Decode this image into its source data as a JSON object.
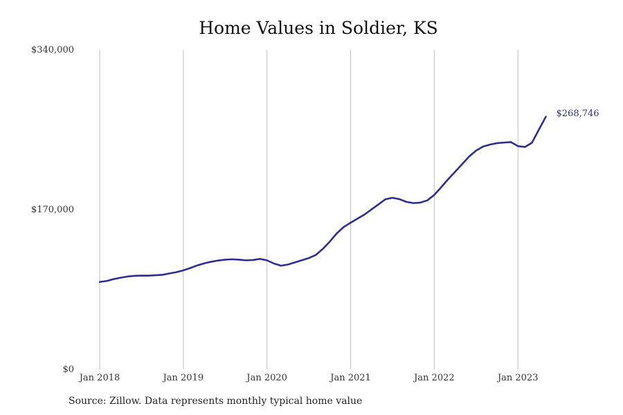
{
  "chart_data": {
    "type": "line",
    "title": "Home Values in Soldier, KS",
    "xlabel": "",
    "ylabel": "",
    "ylim": [
      0,
      340000
    ],
    "xlim": [
      "2018-01",
      "2023-12"
    ],
    "y_ticks": [
      "$0",
      "$170,000",
      "$340,000"
    ],
    "y_tick_values": [
      0,
      170000,
      340000
    ],
    "x_ticks": [
      "Jan 2018",
      "Jan 2019",
      "Jan 2020",
      "Jan 2021",
      "Jan 2022",
      "Jan 2023"
    ],
    "x_tick_values": [
      "2018-01",
      "2019-01",
      "2020-01",
      "2021-01",
      "2022-01",
      "2023-01"
    ],
    "grid": "vertical",
    "line_color": "#2e2e8c",
    "end_label": "$268,746",
    "series": [
      {
        "x": [
          "2018-01",
          "2018-02",
          "2018-03",
          "2018-04",
          "2018-05",
          "2018-06",
          "2018-07",
          "2018-08",
          "2018-09",
          "2018-10",
          "2018-11",
          "2018-12",
          "2019-01",
          "2019-02",
          "2019-03",
          "2019-04",
          "2019-05",
          "2019-06",
          "2019-07",
          "2019-08",
          "2019-09",
          "2019-10",
          "2019-11",
          "2019-12",
          "2020-01",
          "2020-02",
          "2020-03",
          "2020-04",
          "2020-05",
          "2020-06",
          "2020-07",
          "2020-08",
          "2020-09",
          "2020-10",
          "2020-11",
          "2020-12",
          "2021-01",
          "2021-02",
          "2021-03",
          "2021-04",
          "2021-05",
          "2021-06",
          "2021-07",
          "2021-08",
          "2021-09",
          "2021-10",
          "2021-11",
          "2021-12",
          "2022-01",
          "2022-02",
          "2022-03",
          "2022-04",
          "2022-05",
          "2022-06",
          "2022-07",
          "2022-08",
          "2022-09",
          "2022-10",
          "2022-11",
          "2022-12",
          "2023-01",
          "2023-02",
          "2023-03",
          "2023-04",
          "2023-05"
        ],
        "values": [
          93000,
          94000,
          96000,
          97500,
          98800,
          99500,
          99800,
          99700,
          100100,
          100600,
          102000,
          103400,
          105300,
          107800,
          110600,
          112800,
          114500,
          115800,
          116700,
          117100,
          116700,
          116000,
          116300,
          117500,
          116000,
          112600,
          110300,
          111500,
          113800,
          116100,
          118400,
          121700,
          128100,
          135800,
          144600,
          151400,
          156000,
          160400,
          164800,
          170200,
          175600,
          181000,
          182500,
          181100,
          178200,
          176900,
          177400,
          179800,
          185600,
          193800,
          202400,
          210300,
          218400,
          226500,
          232700,
          237100,
          239200,
          240700,
          241300,
          241800,
          237500,
          236600,
          241000,
          255000,
          268746
        ]
      }
    ]
  },
  "source_note": "Source: Zillow. Data represents monthly typical home value"
}
